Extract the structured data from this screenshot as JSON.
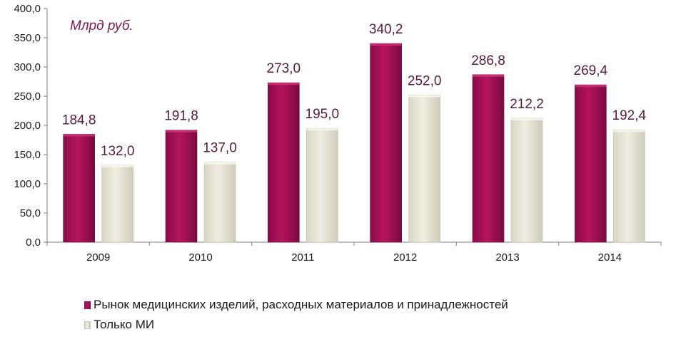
{
  "chart_data": {
    "type": "bar",
    "unit_label": "Млрд руб.",
    "categories": [
      "2009",
      "2010",
      "2011",
      "2012",
      "2013",
      "2014"
    ],
    "series": [
      {
        "name": "Рынок медицинских изделий, расходных материалов и принадлежностей",
        "values": [
          184.8,
          191.8,
          273.0,
          340.2,
          286.8,
          269.4
        ],
        "labels": [
          "184,8",
          "191,8",
          "273,0",
          "340,2",
          "286,8",
          "269,4"
        ],
        "color": "#b0125e"
      },
      {
        "name": "Только МИ",
        "values": [
          132.0,
          137.0,
          195.0,
          252.0,
          212.2,
          192.4
        ],
        "labels": [
          "132,0",
          "137,0",
          "195,0",
          "252,0",
          "212,2",
          "192,4"
        ],
        "color": "#e6e3d3"
      }
    ],
    "y_ticks": [
      "0,0",
      "50,0",
      "100,0",
      "150,0",
      "200,0",
      "250,0",
      "300,0",
      "350,0",
      "400,0"
    ],
    "ylim": [
      0,
      400
    ],
    "grid": false,
    "legend_position": "bottom-left"
  }
}
